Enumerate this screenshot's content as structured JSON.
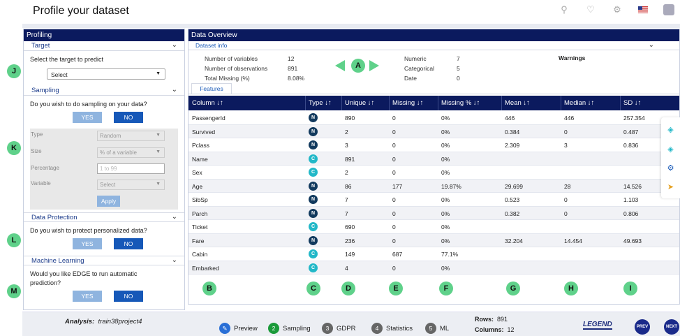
{
  "header": {
    "title": "Profile your dataset"
  },
  "markers": {
    "J": "J",
    "K": "K",
    "L": "L",
    "M": "M",
    "A": "A",
    "B": "B",
    "C": "C",
    "D": "D",
    "E": "E",
    "F": "F",
    "G": "G",
    "H": "H",
    "I": "I"
  },
  "profiling": {
    "title": "Profiling",
    "target": {
      "label": "Target",
      "question": "Select the target to predict",
      "select_value": "Select"
    },
    "sampling": {
      "label": "Sampling",
      "question": "Do you wish to do sampling on your data?",
      "yes": "YES",
      "no": "NO",
      "type_label": "Type",
      "type_value": "Random",
      "size_label": "Size",
      "size_value": "% of a variable",
      "percentage_label": "Percentage",
      "percentage_placeholder": "1 to 99",
      "variable_label": "Variable",
      "variable_value": "Select",
      "apply": "Apply"
    },
    "protection": {
      "label": "Data Protection",
      "question": "Do you wish to protect personalized data?",
      "yes": "YES",
      "no": "NO"
    },
    "ml": {
      "label": "Machine Learning",
      "question_1": "Would you like EDGE to run automatic",
      "question_2": "prediction?",
      "yes": "YES",
      "no": "NO"
    }
  },
  "overview": {
    "title": "Data Overview",
    "dataset_info_label": "Dataset info",
    "num_vars_label": "Number of variables",
    "num_vars": "12",
    "num_obs_label": "Number of observations",
    "num_obs": "891",
    "missing_label": "Total Missing (%)",
    "missing": "8.08%",
    "numeric_label": "Numeric",
    "numeric": "7",
    "categorical_label": "Categorical",
    "categorical": "5",
    "date_label": "Date",
    "date": "0",
    "warnings_label": "Warnings",
    "features_tab": "Features"
  },
  "table": {
    "headers": [
      "Column ↓↑",
      "Type ↓↑",
      "Unique ↓↑",
      "Missing ↓↑",
      "Missing % ↓↑",
      "Mean ↓↑",
      "Median ↓↑",
      "SD ↓↑"
    ],
    "rows": [
      [
        "PassengerId",
        "N",
        "890",
        "0",
        "0%",
        "446",
        "446",
        "257.354"
      ],
      [
        "Survived",
        "N",
        "2",
        "0",
        "0%",
        "0.384",
        "0",
        "0.487"
      ],
      [
        "Pclass",
        "N",
        "3",
        "0",
        "0%",
        "2.309",
        "3",
        "0.836"
      ],
      [
        "Name",
        "C",
        "891",
        "0",
        "0%",
        "",
        "",
        ""
      ],
      [
        "Sex",
        "C",
        "2",
        "0",
        "0%",
        "",
        "",
        ""
      ],
      [
        "Age",
        "N",
        "86",
        "177",
        "19.87%",
        "29.699",
        "28",
        "14.526"
      ],
      [
        "SibSp",
        "N",
        "7",
        "0",
        "0%",
        "0.523",
        "0",
        "1.103"
      ],
      [
        "Parch",
        "N",
        "7",
        "0",
        "0%",
        "0.382",
        "0",
        "0.806"
      ],
      [
        "Ticket",
        "C",
        "690",
        "0",
        "0%",
        "",
        "",
        ""
      ],
      [
        "Fare",
        "N",
        "236",
        "0",
        "0%",
        "32.204",
        "14.454",
        "49.693"
      ],
      [
        "Cabin",
        "C",
        "149",
        "687",
        "77.1%",
        "",
        "",
        ""
      ],
      [
        "Embarked",
        "C",
        "4",
        "0",
        "0%",
        "",
        "",
        ""
      ]
    ]
  },
  "footer": {
    "analysis_label": "Analysis:",
    "analysis_name": "train38project4",
    "steps": [
      {
        "num": "",
        "label": "Preview"
      },
      {
        "num": "2",
        "label": "Sampling"
      },
      {
        "num": "3",
        "label": "GDPR"
      },
      {
        "num": "4",
        "label": "Statistics"
      },
      {
        "num": "5",
        "label": "ML"
      }
    ],
    "rows_label": "Rows:",
    "rows": "891",
    "cols_label": "Columns:",
    "cols": "12",
    "legend": "LEGEND",
    "prev": "PREV",
    "next": "NEXT"
  },
  "colors": {
    "navy": "#0b1a5e",
    "marker": "#5fd18a",
    "blue_btn": "#1658b8",
    "light_btn": "#8fb4df",
    "type_n": "#123a5e",
    "type_c": "#22b8c8"
  }
}
